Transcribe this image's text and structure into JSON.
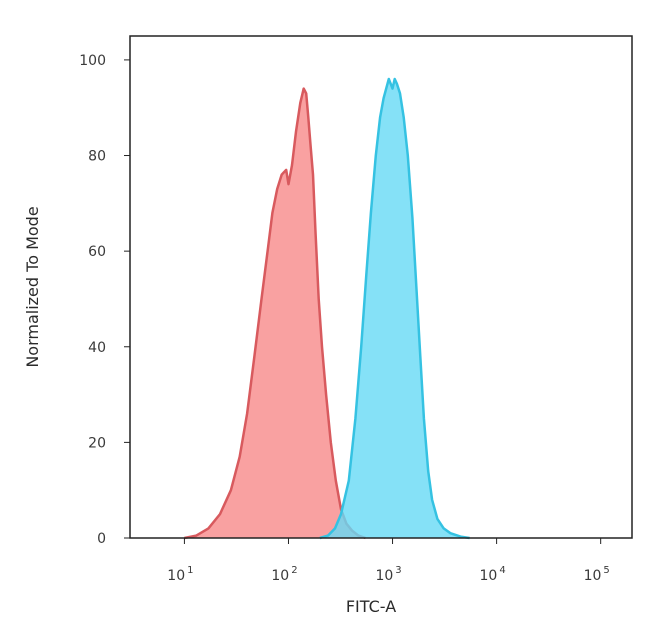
{
  "chart_data": {
    "type": "area",
    "title": "",
    "xlabel": "FITC-A",
    "ylabel": "Normalized To Mode",
    "x_scale": "log",
    "xlim": [
      3,
      200000
    ],
    "ylim": [
      0,
      105
    ],
    "x_ticks": [
      {
        "value": 10,
        "base": "10",
        "exp": "1"
      },
      {
        "value": 100,
        "base": "10",
        "exp": "2"
      },
      {
        "value": 1000,
        "base": "10",
        "exp": "3"
      },
      {
        "value": 10000,
        "base": "10",
        "exp": "4"
      },
      {
        "value": 100000,
        "base": "10",
        "exp": "5"
      }
    ],
    "y_ticks": [
      0,
      20,
      40,
      60,
      80,
      100
    ],
    "grid": false,
    "legend": "none",
    "series": [
      {
        "fill": "#f78a8a",
        "stroke": "#d85a5e",
        "points": [
          [
            10,
            0
          ],
          [
            13,
            0.5
          ],
          [
            17,
            2
          ],
          [
            22,
            5
          ],
          [
            28,
            10
          ],
          [
            34,
            17
          ],
          [
            40,
            26
          ],
          [
            47,
            38
          ],
          [
            55,
            50
          ],
          [
            63,
            60
          ],
          [
            70,
            68
          ],
          [
            78,
            73
          ],
          [
            86,
            76
          ],
          [
            95,
            77
          ],
          [
            100,
            74
          ],
          [
            108,
            78
          ],
          [
            118,
            85
          ],
          [
            130,
            91
          ],
          [
            140,
            94
          ],
          [
            148,
            93
          ],
          [
            155,
            88
          ],
          [
            163,
            82
          ],
          [
            172,
            76
          ],
          [
            182,
            64
          ],
          [
            195,
            50
          ],
          [
            210,
            40
          ],
          [
            230,
            30
          ],
          [
            255,
            20
          ],
          [
            285,
            12
          ],
          [
            320,
            6
          ],
          [
            360,
            3
          ],
          [
            410,
            1.5
          ],
          [
            470,
            0.5
          ],
          [
            550,
            0
          ]
        ]
      },
      {
        "fill": "#66d9f5",
        "stroke": "#35c2e2",
        "points": [
          [
            200,
            0
          ],
          [
            240,
            0.5
          ],
          [
            280,
            2
          ],
          [
            320,
            5
          ],
          [
            380,
            12
          ],
          [
            440,
            25
          ],
          [
            500,
            40
          ],
          [
            560,
            55
          ],
          [
            620,
            68
          ],
          [
            690,
            80
          ],
          [
            760,
            88
          ],
          [
            820,
            92
          ],
          [
            870,
            94
          ],
          [
            920,
            96
          ],
          [
            960,
            95
          ],
          [
            1000,
            94
          ],
          [
            1050,
            96
          ],
          [
            1100,
            95
          ],
          [
            1180,
            93
          ],
          [
            1280,
            88
          ],
          [
            1400,
            80
          ],
          [
            1550,
            67
          ],
          [
            1700,
            52
          ],
          [
            1850,
            38
          ],
          [
            2000,
            25
          ],
          [
            2200,
            14
          ],
          [
            2400,
            8
          ],
          [
            2700,
            4
          ],
          [
            3100,
            2
          ],
          [
            3600,
            1
          ],
          [
            4500,
            0.3
          ],
          [
            5500,
            0
          ]
        ]
      }
    ]
  }
}
